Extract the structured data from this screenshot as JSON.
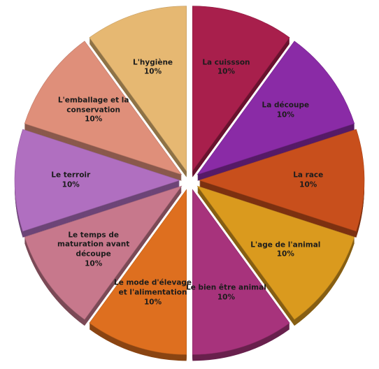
{
  "chart_data": {
    "type": "pie",
    "categories": [
      "La cuissson",
      "La découpe",
      "La race",
      "L'age de l'animal",
      "Le bien être animal",
      "Le mode d'élevage et l'alimentation",
      "Le temps de maturation avant découpe",
      "Le terroir",
      "L'emballage et la conservation",
      "L'hygiène"
    ],
    "values": [
      10,
      10,
      10,
      10,
      10,
      10,
      10,
      10,
      10,
      10
    ],
    "value_labels": [
      "10%",
      "10%",
      "10%",
      "10%",
      "10%",
      "10%",
      "10%",
      "10%",
      "10%",
      "10%"
    ],
    "colors": [
      "#a81f4c",
      "#8a2ba6",
      "#c84f1c",
      "#da9a1e",
      "#a7337c",
      "#de6f1f",
      "#c7788c",
      "#b06fc0",
      "#df8f7a",
      "#e6b872"
    ]
  }
}
